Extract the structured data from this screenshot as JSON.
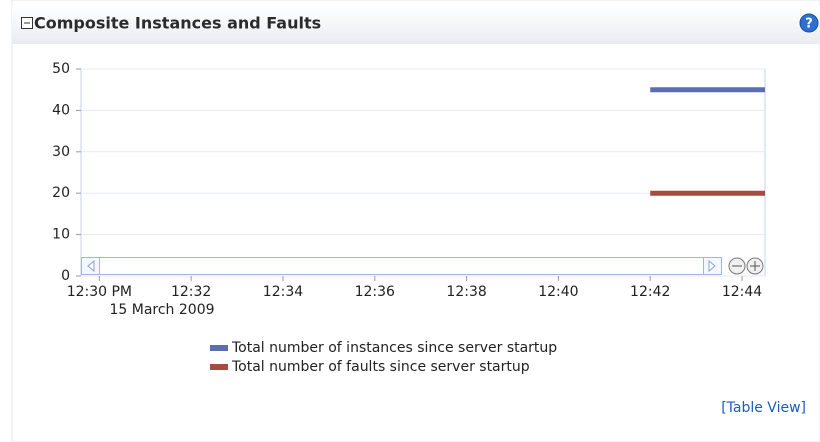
{
  "chart_data": {
    "type": "line",
    "title": "Composite Instances and Faults",
    "help_icon": "?",
    "x_date_label": "15 March 2009",
    "xlim": [
      749.6,
      764.5
    ],
    "xticks": [
      {
        "value": 750,
        "label": "12:30 PM"
      },
      {
        "value": 752,
        "label": "12:32"
      },
      {
        "value": 754,
        "label": "12:34"
      },
      {
        "value": 756,
        "label": "12:36"
      },
      {
        "value": 758,
        "label": "12:38"
      },
      {
        "value": 760,
        "label": "12:40"
      },
      {
        "value": 762,
        "label": "12:42"
      },
      {
        "value": 764,
        "label": "12:44"
      }
    ],
    "ylim": [
      0,
      50
    ],
    "yticks": [
      0,
      10,
      20,
      30,
      40,
      50
    ],
    "grid": true,
    "x": [
      762,
      764.5
    ],
    "series": [
      {
        "name": "Total number of instances since server startup",
        "color": "#5a6fb2",
        "values": [
          45,
          45
        ]
      },
      {
        "name": "Total number of faults since server startup",
        "color": "#a94a42",
        "values": [
          20,
          20
        ]
      }
    ],
    "link": "[Table View]"
  }
}
